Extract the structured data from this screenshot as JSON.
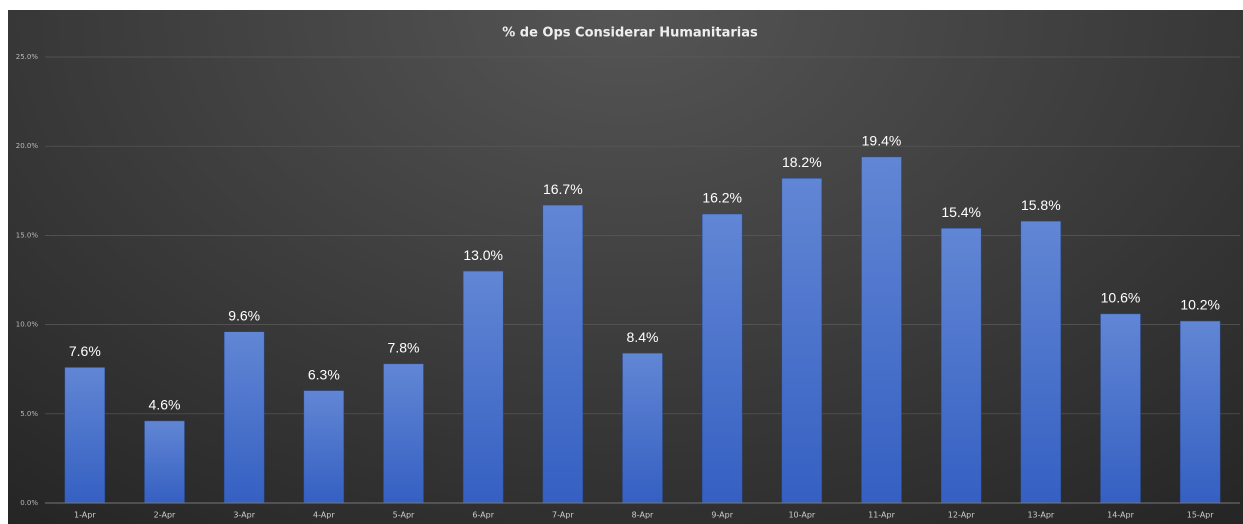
{
  "chart_data": {
    "type": "bar",
    "title": "% de Ops Considerar Humanitarias",
    "categories": [
      "1-Apr",
      "2-Apr",
      "3-Apr",
      "4-Apr",
      "5-Apr",
      "6-Apr",
      "7-Apr",
      "8-Apr",
      "9-Apr",
      "10-Apr",
      "11-Apr",
      "12-Apr",
      "13-Apr",
      "14-Apr",
      "15-Apr"
    ],
    "values": [
      7.6,
      4.6,
      9.6,
      6.3,
      7.8,
      13.0,
      16.7,
      8.4,
      16.2,
      18.2,
      19.4,
      15.4,
      15.8,
      10.6,
      10.2
    ],
    "value_labels": [
      "7.6%",
      "4.6%",
      "9.6%",
      "6.3%",
      "7.8%",
      "13.0%",
      "16.7%",
      "8.4%",
      "16.2%",
      "18.2%",
      "19.4%",
      "15.4%",
      "15.8%",
      "10.6%",
      "10.2%"
    ],
    "color": "#4a72cc",
    "ylim": [
      0,
      25
    ],
    "yticks": [
      {
        "value": 0,
        "label": "0.0%"
      },
      {
        "value": 5,
        "label": "5.0%"
      },
      {
        "value": 10,
        "label": "10.0%"
      },
      {
        "value": 15,
        "label": "15.0%"
      },
      {
        "value": 20,
        "label": "20.0%"
      },
      {
        "value": 25,
        "label": "25.0%"
      }
    ],
    "grid": true
  }
}
